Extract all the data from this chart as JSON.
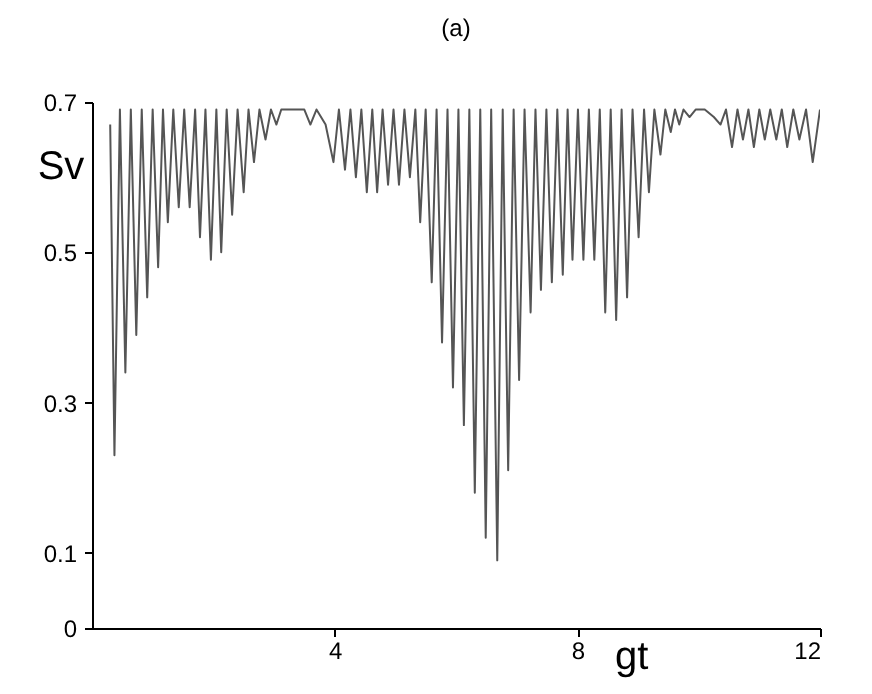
{
  "chart_data": {
    "type": "line",
    "title": "(a)",
    "xlabel": "gt",
    "ylabel": "Sv",
    "xlim": [
      0,
      12
    ],
    "ylim": [
      0,
      0.7
    ],
    "xticks": [
      4,
      8,
      12
    ],
    "yticks": [
      0,
      0.1,
      0.3,
      0.5,
      0.7
    ],
    "grid": false,
    "series": [
      {
        "color": "#555555",
        "x": [
          0.3,
          0.37,
          0.46,
          0.55,
          0.64,
          0.73,
          0.82,
          0.91,
          1.0,
          1.09,
          1.17,
          1.25,
          1.34,
          1.43,
          1.52,
          1.61,
          1.7,
          1.78,
          1.87,
          1.96,
          2.05,
          2.13,
          2.22,
          2.31,
          2.4,
          2.5,
          2.58,
          2.67,
          2.76,
          2.86,
          2.95,
          3.04,
          3.12,
          3.3,
          3.5,
          3.6,
          3.7,
          3.85,
          3.98,
          4.07,
          4.17,
          4.26,
          4.35,
          4.44,
          4.53,
          4.62,
          4.7,
          4.79,
          4.88,
          4.97,
          5.06,
          5.15,
          5.24,
          5.33,
          5.41,
          5.5,
          5.6,
          5.68,
          5.77,
          5.86,
          5.95,
          6.04,
          6.13,
          6.22,
          6.31,
          6.4,
          6.49,
          6.58,
          6.68,
          6.77,
          6.86,
          6.95,
          7.04,
          7.13,
          7.23,
          7.31,
          7.4,
          7.49,
          7.58,
          7.67,
          7.76,
          7.84,
          7.92,
          8.01,
          8.1,
          8.19,
          8.28,
          8.37,
          8.46,
          8.55,
          8.64,
          8.73,
          8.82,
          8.91,
          9.01,
          9.1,
          9.18,
          9.27,
          9.37,
          9.45,
          9.54,
          9.61,
          9.68,
          9.75,
          9.85,
          9.95,
          10.1,
          10.25,
          10.36,
          10.45,
          10.55,
          10.64,
          10.73,
          10.82,
          10.91,
          11.0,
          11.09,
          11.18,
          11.28,
          11.37,
          11.46,
          11.56,
          11.66,
          11.77,
          11.88,
          12.0
        ],
        "values": [
          0.67,
          0.23,
          0.69,
          0.34,
          0.69,
          0.39,
          0.69,
          0.44,
          0.69,
          0.48,
          0.69,
          0.54,
          0.69,
          0.56,
          0.69,
          0.56,
          0.69,
          0.52,
          0.69,
          0.49,
          0.69,
          0.5,
          0.69,
          0.55,
          0.69,
          0.58,
          0.69,
          0.62,
          0.69,
          0.65,
          0.69,
          0.67,
          0.69,
          0.69,
          0.69,
          0.67,
          0.69,
          0.67,
          0.62,
          0.69,
          0.61,
          0.69,
          0.6,
          0.69,
          0.58,
          0.69,
          0.58,
          0.69,
          0.59,
          0.69,
          0.59,
          0.69,
          0.6,
          0.69,
          0.54,
          0.69,
          0.46,
          0.69,
          0.38,
          0.69,
          0.32,
          0.69,
          0.27,
          0.69,
          0.18,
          0.69,
          0.12,
          0.69,
          0.09,
          0.69,
          0.21,
          0.69,
          0.33,
          0.69,
          0.42,
          0.69,
          0.45,
          0.69,
          0.46,
          0.69,
          0.47,
          0.69,
          0.49,
          0.69,
          0.49,
          0.69,
          0.49,
          0.69,
          0.42,
          0.69,
          0.41,
          0.69,
          0.44,
          0.69,
          0.52,
          0.69,
          0.58,
          0.69,
          0.63,
          0.69,
          0.66,
          0.69,
          0.67,
          0.69,
          0.68,
          0.69,
          0.69,
          0.68,
          0.67,
          0.69,
          0.64,
          0.69,
          0.65,
          0.69,
          0.64,
          0.69,
          0.65,
          0.69,
          0.65,
          0.69,
          0.64,
          0.69,
          0.65,
          0.69,
          0.62,
          0.69
        ]
      }
    ]
  }
}
